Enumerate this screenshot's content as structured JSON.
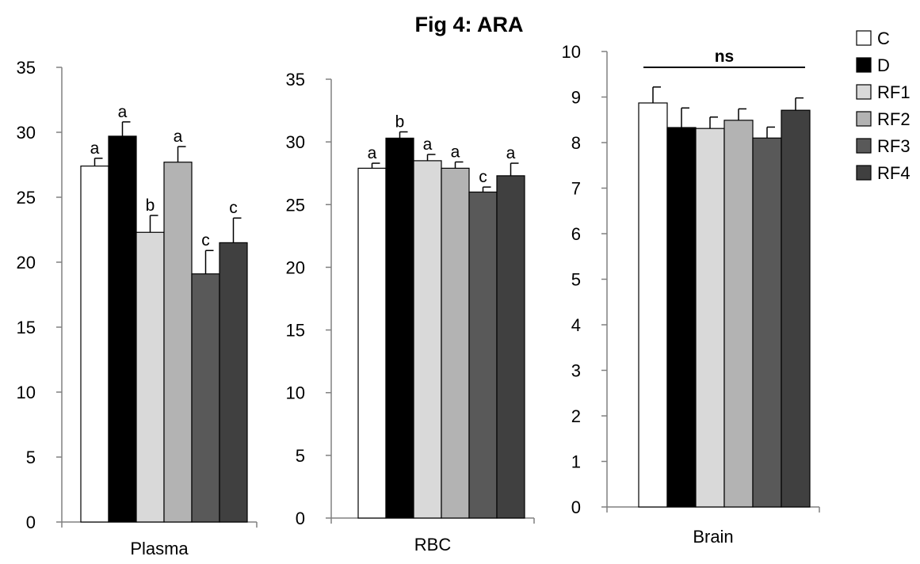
{
  "title": "Fig 4: ARA",
  "colors": {
    "C": "#ffffff",
    "D": "#000000",
    "RF1": "#d9d9d9",
    "RF2": "#b3b3b3",
    "RF3": "#595959",
    "RF4": "#404040"
  },
  "legend": {
    "position": "right",
    "entries": [
      "C",
      "D",
      "RF1",
      "RF2",
      "RF3",
      "RF4"
    ]
  },
  "chart_data": [
    {
      "type": "bar",
      "xlabel": "Plasma",
      "ylim": [
        0,
        35
      ],
      "yticks": [
        0,
        5,
        10,
        15,
        20,
        25,
        30,
        35
      ],
      "categories": [
        "C",
        "D",
        "RF1",
        "RF2",
        "RF3",
        "RF4"
      ],
      "values": [
        27.4,
        29.7,
        22.3,
        27.7,
        19.1,
        21.5
      ],
      "errors": [
        0.6,
        1.1,
        1.3,
        1.2,
        1.8,
        1.9
      ],
      "letters": [
        "a",
        "a",
        "b",
        "a",
        "c",
        "c"
      ]
    },
    {
      "type": "bar",
      "xlabel": "RBC",
      "ylim": [
        0,
        35
      ],
      "yticks": [
        0,
        5,
        10,
        15,
        20,
        25,
        30,
        35
      ],
      "categories": [
        "C",
        "D",
        "RF1",
        "RF2",
        "RF3",
        "RF4"
      ],
      "values": [
        27.9,
        30.3,
        28.5,
        27.9,
        26.0,
        27.3
      ],
      "errors": [
        0.4,
        0.5,
        0.5,
        0.5,
        0.4,
        1.0
      ],
      "letters": [
        "a",
        "b",
        "a",
        "a",
        "c",
        "a"
      ]
    },
    {
      "type": "bar",
      "xlabel": "Brain",
      "ylim": [
        0,
        10
      ],
      "yticks": [
        0,
        1,
        2,
        3,
        4,
        5,
        6,
        7,
        8,
        9,
        10
      ],
      "categories": [
        "C",
        "D",
        "RF1",
        "RF2",
        "RF3",
        "RF4"
      ],
      "values": [
        8.87,
        8.33,
        8.31,
        8.49,
        8.1,
        8.71
      ],
      "errors": [
        0.35,
        0.43,
        0.25,
        0.25,
        0.24,
        0.27
      ],
      "letters": [],
      "annotation": "ns"
    }
  ]
}
